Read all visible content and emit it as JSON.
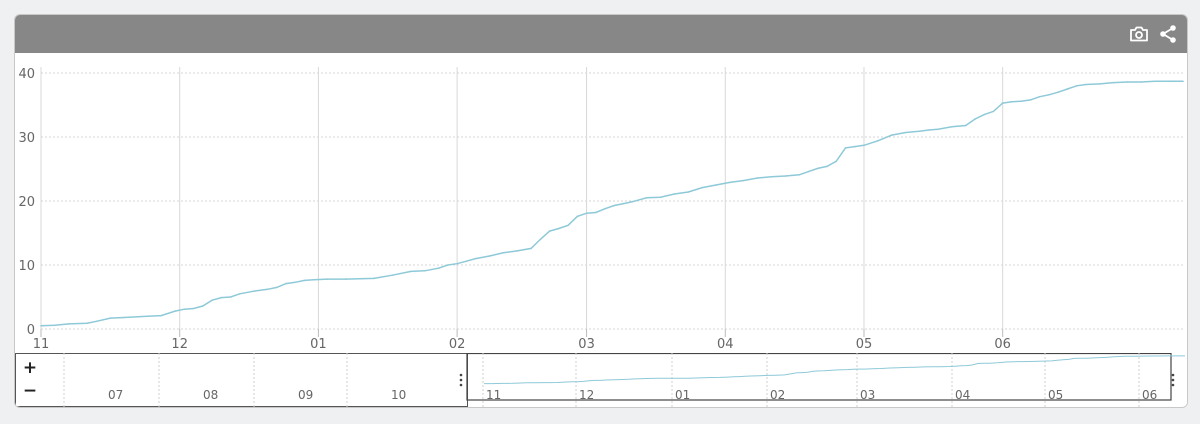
{
  "toolbar": {
    "background": "#878787",
    "icons": [
      "camera-icon",
      "share-icon"
    ]
  },
  "navigator": {
    "zoom_in_label": "+",
    "zoom_out_label": "−",
    "context_ticks": [
      "07",
      "08",
      "09",
      "10"
    ],
    "selected_ticks": [
      "11",
      "12",
      "01",
      "02",
      "03",
      "04",
      "05",
      "06"
    ],
    "handle_icon": "vertical-dots-icon"
  },
  "chart_data": {
    "type": "line",
    "title": "",
    "xlabel": "",
    "ylabel": "",
    "x_tick_labels": [
      "11",
      "12",
      "01",
      "02",
      "03",
      "04",
      "05",
      "06"
    ],
    "y_ticks": [
      0,
      10,
      20,
      30,
      40
    ],
    "ylim": [
      0,
      40
    ],
    "xlim": [
      0,
      12.35
    ],
    "grid": true,
    "legend": "none",
    "line_color": "#8ec9d8",
    "series": [
      {
        "x": [
          0,
          0.15,
          0.3,
          0.5,
          0.6,
          0.75,
          0.9,
          1.05,
          1.15,
          1.3,
          1.45,
          1.55,
          1.65,
          1.75,
          1.85,
          1.95,
          2.05,
          2.15,
          2.3,
          2.45,
          2.55,
          2.65,
          2.75,
          2.85,
          2.95,
          3.1,
          3.3,
          3.6,
          3.8,
          4.0,
          4.15,
          4.3,
          4.4,
          4.5,
          4.6,
          4.7,
          4.85,
          5.0,
          5.15,
          5.3,
          5.4,
          5.5,
          5.6,
          5.7,
          5.8,
          5.9,
          6.0,
          6.1,
          6.2,
          6.3,
          6.4,
          6.55,
          6.7,
          6.85,
          7.0,
          7.15,
          7.3,
          7.45,
          7.6,
          7.75,
          7.9,
          8.05,
          8.2,
          8.3,
          8.4,
          8.5,
          8.6,
          8.7,
          8.8,
          8.9,
          9.05,
          9.2,
          9.35,
          9.5,
          9.6,
          9.7,
          9.85,
          10.0,
          10.1,
          10.2,
          10.3,
          10.4,
          10.5,
          10.6,
          10.7,
          10.8,
          10.9,
          11.0,
          11.1,
          11.2,
          11.3,
          11.45,
          11.6,
          11.75,
          11.9,
          12.05,
          12.2,
          12.35
        ],
        "y": [
          0.5,
          0.6,
          0.8,
          0.9,
          1.2,
          1.7,
          1.8,
          1.9,
          2.0,
          2.1,
          2.8,
          3.1,
          3.2,
          3.6,
          4.5,
          4.9,
          5.0,
          5.5,
          5.9,
          6.2,
          6.5,
          7.1,
          7.3,
          7.6,
          7.7,
          7.8,
          7.8,
          7.9,
          8.4,
          9.0,
          9.1,
          9.5,
          10.0,
          10.2,
          10.6,
          11.0,
          11.4,
          11.9,
          12.2,
          12.6,
          14.0,
          15.3,
          15.7,
          16.2,
          17.6,
          18.1,
          18.2,
          18.8,
          19.3,
          19.6,
          19.9,
          20.5,
          20.6,
          21.1,
          21.4,
          22.1,
          22.5,
          22.9,
          23.2,
          23.6,
          23.8,
          23.9,
          24.1,
          24.6,
          25.1,
          25.4,
          26.2,
          28.3,
          28.5,
          28.7,
          29.4,
          30.3,
          30.7,
          30.9,
          31.1,
          31.2,
          31.6,
          31.8,
          32.8,
          33.5,
          34.0,
          35.3,
          35.5,
          35.6,
          35.8,
          36.3,
          36.6,
          37.0,
          37.5,
          38.0,
          38.2,
          38.3,
          38.5,
          38.6,
          38.6,
          38.7,
          38.7,
          38.7
        ]
      }
    ]
  }
}
